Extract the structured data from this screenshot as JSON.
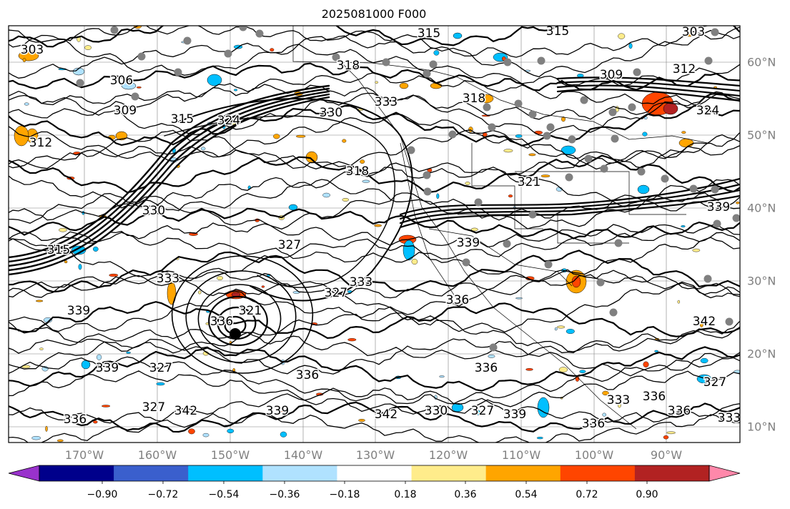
{
  "title": "2025081000 F000",
  "longitude_labels": [
    "170°W",
    "160°W",
    "150°W",
    "140°W",
    "130°W",
    "120°W",
    "110°W",
    "100°W",
    "90°W"
  ],
  "latitude_labels": [
    "60°N",
    "50°N",
    "40°N",
    "30°N",
    "20°N",
    "10°N"
  ],
  "colorbar": {
    "tick_labels": [
      "−0.90",
      "−0.72",
      "−0.54",
      "−0.36",
      "−0.18",
      "0.18",
      "0.36",
      "0.54",
      "0.72",
      "0.90"
    ],
    "colors": [
      "#9932cc",
      "#00008b",
      "#3a5fcd",
      "#00bfff",
      "#b0e2ff",
      "#ffffff",
      "#ffec8b",
      "#ffa500",
      "#ff4500",
      "#b22222",
      "#ff88aa"
    ]
  },
  "contour_labels": [
    "315",
    "303",
    "315",
    "318",
    "303",
    "306",
    "312",
    "309",
    "309",
    "315",
    "324",
    "330",
    "333",
    "318",
    "336",
    "312",
    "327",
    "333",
    "315",
    "321",
    "330",
    "318",
    "324",
    "327",
    "339",
    "336",
    "321",
    "333",
    "336",
    "327",
    "342",
    "327",
    "336",
    "339",
    "330",
    "336",
    "327",
    "342",
    "336",
    "339",
    "327",
    "339",
    "333",
    "336",
    "342",
    "339",
    "333",
    "339",
    "336"
  ],
  "colors": {
    "land": "#000000",
    "grid": "#808080",
    "station": "#808080"
  }
}
